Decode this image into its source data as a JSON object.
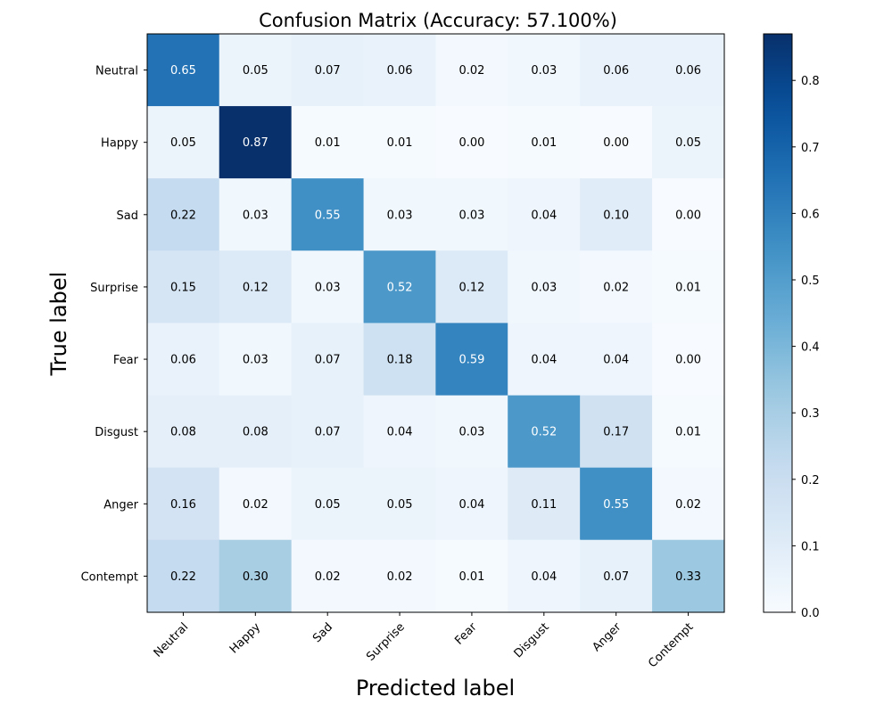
{
  "chart_data": {
    "type": "heatmap",
    "title": "Confusion Matrix (Accuracy: 57.100%)",
    "xlabel": "Predicted label",
    "ylabel": "True label",
    "x_categories": [
      "Neutral",
      "Happy",
      "Sad",
      "Surprise",
      "Fear",
      "Disgust",
      "Anger",
      "Contempt"
    ],
    "y_categories": [
      "Neutral",
      "Happy",
      "Sad",
      "Surprise",
      "Fear",
      "Disgust",
      "Anger",
      "Contempt"
    ],
    "values": [
      [
        0.65,
        0.05,
        0.07,
        0.06,
        0.02,
        0.03,
        0.06,
        0.06
      ],
      [
        0.05,
        0.87,
        0.01,
        0.01,
        0.0,
        0.01,
        0.0,
        0.05
      ],
      [
        0.22,
        0.03,
        0.55,
        0.03,
        0.03,
        0.04,
        0.1,
        0.0
      ],
      [
        0.15,
        0.12,
        0.03,
        0.52,
        0.12,
        0.03,
        0.02,
        0.01
      ],
      [
        0.06,
        0.03,
        0.07,
        0.18,
        0.59,
        0.04,
        0.04,
        0.0
      ],
      [
        0.08,
        0.08,
        0.07,
        0.04,
        0.03,
        0.52,
        0.17,
        0.01
      ],
      [
        0.16,
        0.02,
        0.05,
        0.05,
        0.04,
        0.11,
        0.55,
        0.02
      ],
      [
        0.22,
        0.3,
        0.02,
        0.02,
        0.01,
        0.04,
        0.07,
        0.33
      ]
    ],
    "value_format": "2 decimals",
    "colormap": "Blues",
    "colorbar": {
      "min": 0.0,
      "max": 0.87,
      "ticks": [
        0.0,
        0.1,
        0.2,
        0.3,
        0.4,
        0.5,
        0.6,
        0.7,
        0.8
      ]
    },
    "text_color_threshold": 0.435,
    "colors": {
      "low": "#f7fbff",
      "high": "#08306b",
      "text_dark": "#000000",
      "text_light": "#ffffff"
    }
  }
}
